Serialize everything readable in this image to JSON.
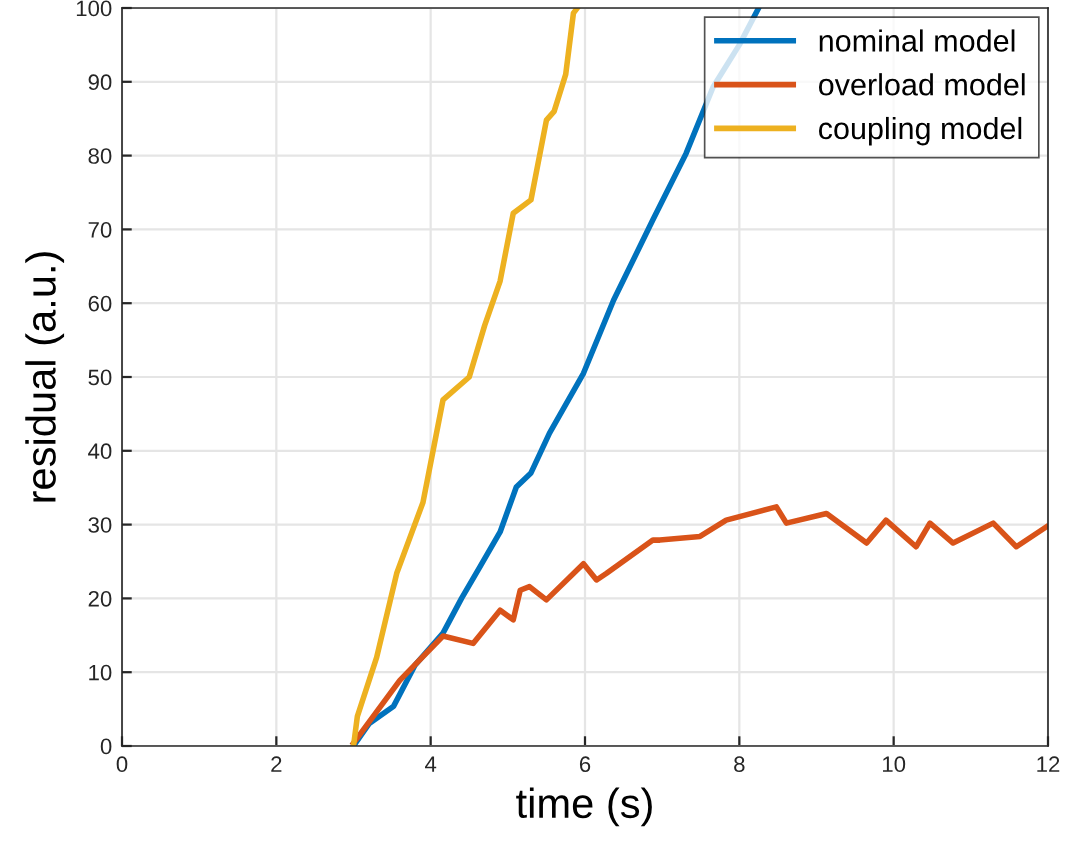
{
  "chart_data": {
    "type": "line",
    "xlabel": "time (s)",
    "ylabel": "residual (a.u.)",
    "xlim": [
      0,
      12
    ],
    "ylim": [
      0,
      100
    ],
    "xticks": [
      0,
      2,
      4,
      6,
      8,
      10,
      12
    ],
    "yticks": [
      0,
      10,
      20,
      30,
      40,
      50,
      60,
      70,
      80,
      90,
      100
    ],
    "grid": true,
    "legend": "top right",
    "line_style": "solid",
    "marker": "none",
    "series": [
      {
        "name": "nominal model",
        "color": "#0072bd",
        "x": [
          3.0,
          3.2,
          3.52,
          3.8,
          4.16,
          4.4,
          4.64,
          4.9,
          5.11,
          5.3,
          5.54,
          5.98,
          6.37,
          6.88,
          7.31,
          7.66,
          8.0,
          8.25
        ],
        "values": [
          0,
          3,
          5.4,
          11,
          15.3,
          20,
          24.3,
          29,
          35.1,
          37,
          42.4,
          50.5,
          60.4,
          71.3,
          80.3,
          89.3,
          95,
          100
        ]
      },
      {
        "name": "overload model",
        "color": "#d95319",
        "x": [
          3.0,
          3.6,
          4.16,
          4.55,
          4.9,
          5.07,
          5.16,
          5.28,
          5.5,
          5.98,
          6.15,
          6.28,
          6.88,
          6.97,
          7.49,
          7.83,
          8.48,
          8.61,
          9.13,
          9.65,
          9.9,
          10.29,
          10.47,
          10.77,
          11.29,
          11.59,
          11.98
        ],
        "values": [
          0.4,
          8.9,
          14.9,
          13.9,
          18.4,
          17.1,
          21.1,
          21.6,
          19.8,
          24.7,
          22.5,
          23.4,
          27.9,
          27.9,
          28.4,
          30.6,
          32.4,
          30.2,
          31.5,
          27.5,
          30.6,
          27.0,
          30.2,
          27.5,
          30.2,
          27.0,
          29.7
        ]
      },
      {
        "name": "coupling model",
        "color": "#edb120",
        "x": [
          3.0,
          3.05,
          3.3,
          3.56,
          3.9,
          4.16,
          4.5,
          4.7,
          4.9,
          5.07,
          5.3,
          5.5,
          5.6,
          5.75,
          5.85,
          5.9
        ],
        "values": [
          0,
          4,
          12,
          23.4,
          33,
          46.9,
          50,
          57,
          63,
          72.2,
          74,
          84.8,
          86,
          91,
          99.3,
          100
        ]
      }
    ]
  }
}
